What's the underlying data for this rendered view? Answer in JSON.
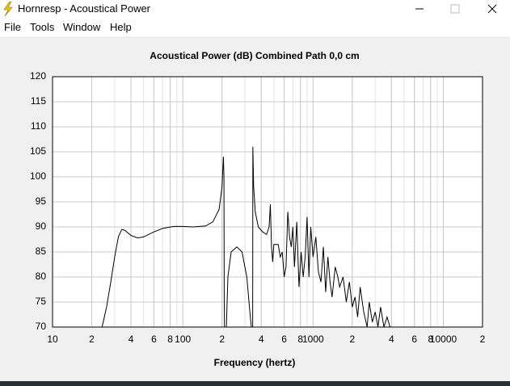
{
  "window": {
    "title": "Hornresp - Acoustical Power",
    "menu": [
      "File",
      "Tools",
      "Window",
      "Help"
    ]
  },
  "chart_data": {
    "type": "line",
    "title": "Acoustical Power (dB)   Combined   Path 0,0 cm",
    "x_label": "Frequency (hertz)",
    "x_scale": "log",
    "grid": true,
    "minor_grid": true,
    "xlim": [
      10,
      20000
    ],
    "xticks": [
      10,
      {
        "value": 20,
        "label": "2"
      },
      {
        "value": 40,
        "label": "4"
      },
      {
        "value": 60,
        "label": "6"
      },
      {
        "value": 80,
        "label": "8"
      },
      100,
      {
        "value": 200,
        "label": "2"
      },
      {
        "value": 400,
        "label": "4"
      },
      {
        "value": 600,
        "label": "6"
      },
      {
        "value": 800,
        "label": "8"
      },
      1000,
      {
        "value": 2000,
        "label": "2"
      },
      {
        "value": 4000,
        "label": "4"
      },
      {
        "value": 6000,
        "label": "6"
      },
      {
        "value": 8000,
        "label": "8"
      },
      10000,
      {
        "value": 20000,
        "label": "2"
      }
    ],
    "ylim": [
      70,
      120
    ],
    "yticks": [
      70,
      75,
      80,
      85,
      90,
      95,
      100,
      105,
      110,
      115,
      120
    ],
    "series": [
      {
        "color": "#000000",
        "x": [
          24,
          26,
          28,
          30,
          32,
          34,
          36,
          40,
          45,
          50,
          60,
          70,
          85,
          100,
          120,
          150,
          170,
          190,
          200,
          205,
          207,
          208,
          209,
          212,
          216,
          222,
          235,
          260,
          285,
          310,
          330,
          336,
          340,
          344,
          345,
          350,
          360,
          380,
          410,
          440,
          460,
          470,
          480,
          490,
          500,
          540,
          560,
          580,
          600,
          620,
          640,
          660,
          680,
          700,
          720,
          750,
          780,
          810,
          840,
          870,
          900,
          930,
          960,
          1000,
          1050,
          1100,
          1150,
          1200,
          1250,
          1300,
          1350,
          1400,
          1480,
          1550,
          1600,
          1700,
          1800,
          1900,
          2000,
          2100,
          2200,
          2300,
          2450,
          2600,
          2700,
          2850,
          3000,
          3150,
          3300,
          3500,
          3700,
          3900
        ],
        "values": [
          70,
          74,
          79,
          84,
          88,
          89.5,
          89.3,
          88.3,
          87.8,
          88,
          89,
          89.7,
          90.1,
          90.1,
          90,
          90.2,
          91,
          93.5,
          98,
          104,
          100,
          76,
          70,
          null,
          70,
          80,
          85,
          86,
          85,
          80,
          72,
          70,
          null,
          70,
          106,
          98,
          93,
          90,
          89,
          88.5,
          90,
          94.5,
          86,
          83,
          86.5,
          86.5,
          84,
          85,
          80,
          82,
          93,
          88,
          86,
          90,
          82,
          91,
          78,
          85,
          80,
          84,
          92,
          80,
          90,
          84,
          88,
          81,
          79,
          86,
          77,
          84,
          79,
          76,
          82,
          80,
          78,
          80,
          75,
          79,
          74,
          76,
          72,
          78,
          73,
          70,
          75,
          71,
          73,
          70,
          74,
          70,
          72,
          70
        ]
      }
    ]
  }
}
